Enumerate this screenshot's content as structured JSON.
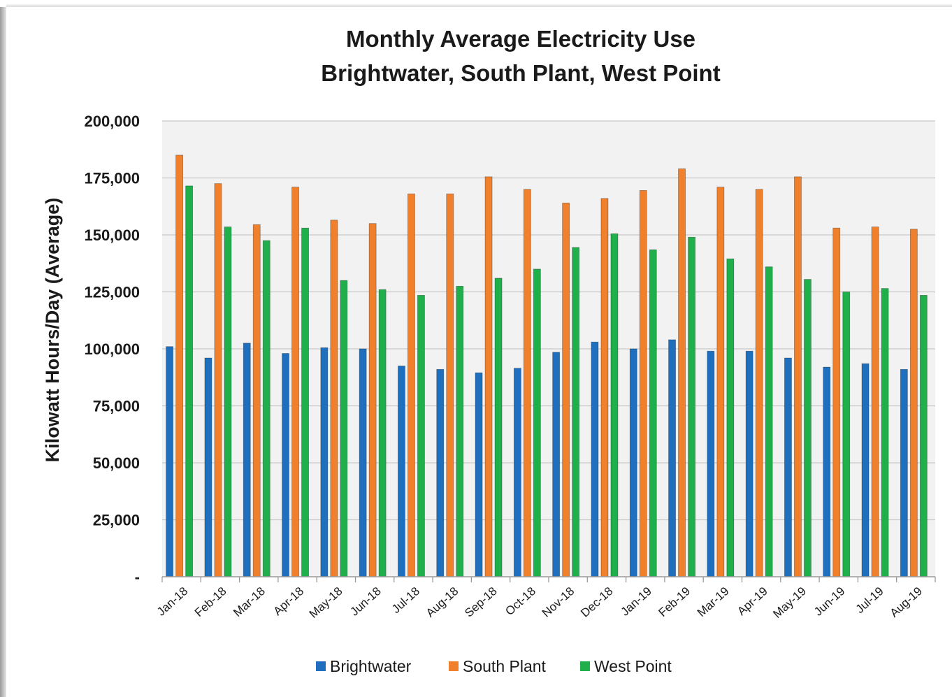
{
  "chart_data": {
    "type": "bar",
    "title": "Monthly Average Electricity Use",
    "subtitle": "Brightwater, South Plant, West Point",
    "xlabel": "",
    "ylabel": "Kilowatt Hours/Day (Average)",
    "ylim": [
      0,
      200000
    ],
    "yticks": [
      0,
      25000,
      50000,
      75000,
      100000,
      125000,
      150000,
      175000,
      200000
    ],
    "ytick_labels": [
      "-",
      "25,000",
      "50,000",
      "75,000",
      "100,000",
      "125,000",
      "150,000",
      "175,000",
      "200,000"
    ],
    "grid": true,
    "legend_position": "bottom",
    "categories": [
      "Jan-18",
      "Feb-18",
      "Mar-18",
      "Apr-18",
      "May-18",
      "Jun-18",
      "Jul-18",
      "Aug-18",
      "Sep-18",
      "Oct-18",
      "Nov-18",
      "Dec-18",
      "Jan-19",
      "Feb-19",
      "Mar-19",
      "Apr-19",
      "May-19",
      "Jun-19",
      "Jul-19",
      "Aug-19"
    ],
    "series": [
      {
        "name": "Brightwater",
        "color": "#1f6fbf",
        "values": [
          101000,
          96000,
          102500,
          98000,
          100500,
          100000,
          92500,
          91000,
          89500,
          91500,
          98500,
          103000,
          100000,
          104000,
          99000,
          99000,
          96000,
          92000,
          93500,
          91000
        ]
      },
      {
        "name": "South Plant",
        "color": "#f0802c",
        "values": [
          185000,
          172500,
          154500,
          171000,
          156500,
          155000,
          168000,
          168000,
          175500,
          170000,
          164000,
          166000,
          169500,
          179000,
          171000,
          170000,
          175500,
          153000,
          153500,
          152500
        ]
      },
      {
        "name": "West Point",
        "color": "#1faf4b",
        "values": [
          171500,
          153500,
          147500,
          153000,
          130000,
          126000,
          123500,
          127500,
          131000,
          135000,
          144500,
          150500,
          143500,
          149000,
          139500,
          136000,
          130500,
          125000,
          126500,
          123500
        ]
      }
    ],
    "plot_background": "#f2f2f2",
    "gridline_color": "#c8c8c8"
  }
}
